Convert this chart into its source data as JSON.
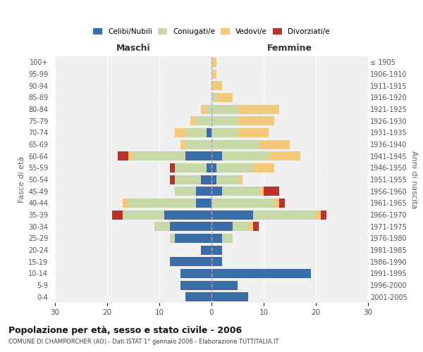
{
  "age_groups": [
    "0-4",
    "5-9",
    "10-14",
    "15-19",
    "20-24",
    "25-29",
    "30-34",
    "35-39",
    "40-44",
    "45-49",
    "50-54",
    "55-59",
    "60-64",
    "65-69",
    "70-74",
    "75-79",
    "80-84",
    "85-89",
    "90-94",
    "95-99",
    "100+"
  ],
  "birth_years": [
    "2001-2005",
    "1996-2000",
    "1991-1995",
    "1986-1990",
    "1981-1985",
    "1976-1980",
    "1971-1975",
    "1966-1970",
    "1961-1965",
    "1956-1960",
    "1951-1955",
    "1946-1950",
    "1941-1945",
    "1936-1940",
    "1931-1935",
    "1926-1930",
    "1921-1925",
    "1916-1920",
    "1911-1915",
    "1906-1910",
    "≤ 1905"
  ],
  "male": {
    "celibi": [
      5,
      6,
      6,
      8,
      2,
      7,
      8,
      9,
      3,
      3,
      2,
      1,
      5,
      0,
      1,
      0,
      0,
      0,
      0,
      0,
      0
    ],
    "coniugati": [
      0,
      0,
      0,
      0,
      0,
      1,
      3,
      8,
      13,
      4,
      5,
      6,
      10,
      5,
      4,
      3,
      1,
      0,
      0,
      0,
      0
    ],
    "vedovi": [
      0,
      0,
      0,
      0,
      0,
      0,
      0,
      0,
      1,
      0,
      0,
      0,
      1,
      1,
      2,
      1,
      1,
      0,
      0,
      0,
      0
    ],
    "divorziati": [
      0,
      0,
      0,
      0,
      0,
      0,
      0,
      2,
      0,
      0,
      1,
      1,
      2,
      0,
      0,
      0,
      0,
      0,
      0,
      0,
      0
    ]
  },
  "female": {
    "nubili": [
      7,
      5,
      19,
      2,
      2,
      2,
      4,
      8,
      0,
      2,
      1,
      1,
      2,
      0,
      0,
      0,
      0,
      0,
      0,
      0,
      0
    ],
    "coniugate": [
      0,
      0,
      0,
      0,
      0,
      2,
      3,
      12,
      12,
      7,
      4,
      7,
      9,
      9,
      5,
      5,
      5,
      1,
      0,
      0,
      0
    ],
    "vedove": [
      0,
      0,
      0,
      0,
      0,
      0,
      1,
      1,
      1,
      1,
      1,
      4,
      6,
      6,
      6,
      7,
      8,
      3,
      2,
      1,
      1
    ],
    "divorziate": [
      0,
      0,
      0,
      0,
      0,
      0,
      1,
      1,
      1,
      3,
      0,
      0,
      0,
      0,
      0,
      0,
      0,
      0,
      0,
      0,
      0
    ]
  },
  "colors": {
    "celibi": "#3a6ca8",
    "coniugati": "#c8d9a8",
    "vedovi": "#f5c97a",
    "divorziati": "#c0302a"
  },
  "title": "Popolazione per età, sesso e stato civile - 2006",
  "subtitle": "COMUNE DI CHAMPORCHER (AO) - Dati ISTAT 1° gennaio 2006 - Elaborazione TUTTITALIA.IT",
  "xlabel_left": "Maschi",
  "xlabel_right": "Femmine",
  "ylabel_left": "Fasce di età",
  "ylabel_right": "Anni di nascita",
  "xlim": 30,
  "bg_color": "#ffffff",
  "plot_bg_color": "#f0f0f0",
  "grid_color": "#ffffff",
  "legend_labels": [
    "Celibi/Nubili",
    "Coniugati/e",
    "Vedovi/e",
    "Divorziati/e"
  ]
}
